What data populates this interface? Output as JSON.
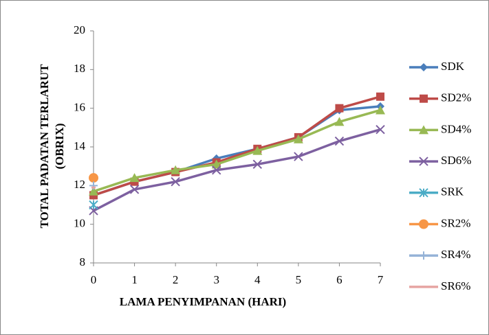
{
  "chart_data": {
    "type": "line",
    "ylabel": [
      "TOTAL PADATAN TERLARUT",
      "(OBRIX)"
    ],
    "xlabel": "LAMA PENYIMPANAN (HARI)",
    "x": [
      0,
      1,
      2,
      3,
      4,
      5,
      6,
      7
    ],
    "xlim": [
      0,
      7
    ],
    "xticks": [
      0,
      1,
      2,
      3,
      4,
      5,
      6,
      7
    ],
    "ylim": [
      8,
      20
    ],
    "yticks": [
      8,
      10,
      12,
      14,
      16,
      18,
      20
    ],
    "legend": "right",
    "series": [
      {
        "name": "SDK",
        "color": "#4a7ebb",
        "marker": "diamond",
        "values": [
          11.5,
          12.2,
          12.7,
          13.4,
          13.9,
          14.5,
          15.9,
          16.1
        ]
      },
      {
        "name": "SD2%",
        "color": "#be4b48",
        "marker": "square",
        "values": [
          11.5,
          12.2,
          12.7,
          13.2,
          13.9,
          14.5,
          16.0,
          16.6
        ]
      },
      {
        "name": "SD4%",
        "color": "#98b954",
        "marker": "triangle",
        "values": [
          11.7,
          12.4,
          12.8,
          13.1,
          13.8,
          14.4,
          15.3,
          15.9
        ]
      },
      {
        "name": "SD6%",
        "color": "#7d60a0",
        "marker": "x",
        "values": [
          10.7,
          11.8,
          12.2,
          12.8,
          13.1,
          13.5,
          14.3,
          14.9
        ]
      },
      {
        "name": "SRK",
        "color": "#4bacc6",
        "marker": "star",
        "values": [
          11.0,
          null,
          null,
          null,
          null,
          null,
          null,
          null
        ]
      },
      {
        "name": "SR2%",
        "color": "#f79646",
        "marker": "circle",
        "values": [
          12.4,
          null,
          null,
          null,
          null,
          null,
          null,
          null
        ]
      },
      {
        "name": "SR4%",
        "color": "#95b3d7",
        "marker": "plus",
        "values": [
          12.0,
          null,
          null,
          null,
          null,
          null,
          null,
          null
        ]
      },
      {
        "name": "SR6%",
        "color": "#e6a4a2",
        "marker": "none",
        "values": [
          11.9,
          null,
          null,
          null,
          null,
          null,
          null,
          null
        ]
      }
    ]
  }
}
